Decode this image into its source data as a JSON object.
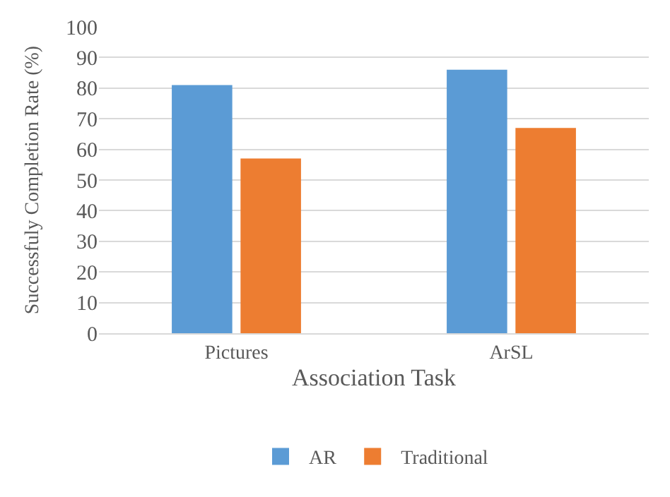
{
  "chart_data": {
    "type": "bar",
    "xlabel": "Association Task",
    "ylabel": "Successfuly Completion Rate (%)",
    "categories": [
      "Pictures",
      "ArSL"
    ],
    "series": [
      {
        "name": "AR",
        "color": "#5b9bd5",
        "values": [
          81,
          86
        ]
      },
      {
        "name": "Traditional",
        "color": "#ed7d31",
        "values": [
          57,
          67
        ]
      }
    ],
    "ylim": [
      0,
      100
    ],
    "yticks": [
      0,
      10,
      20,
      30,
      40,
      50,
      60,
      70,
      80,
      90,
      100
    ],
    "grid": "y",
    "legend": "bottom"
  }
}
